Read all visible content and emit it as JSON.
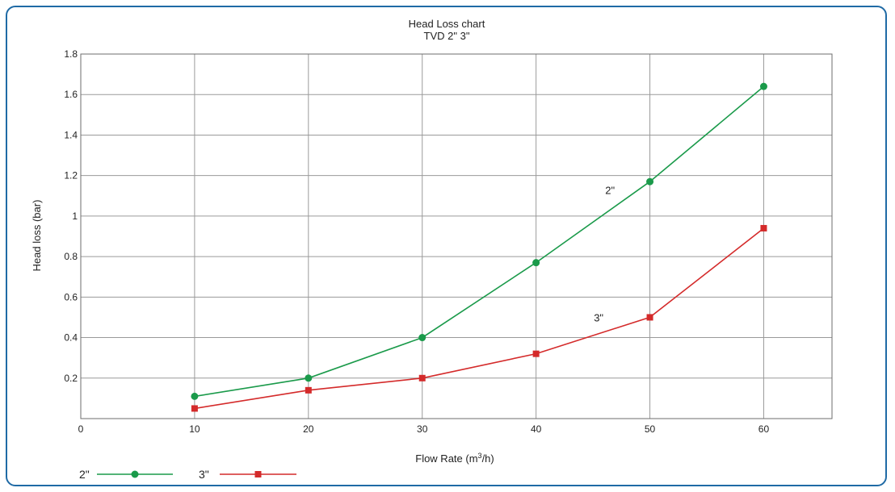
{
  "chart_data": {
    "type": "line",
    "title": "Head Loss chart",
    "subtitle": "TVD 2\" 3\"",
    "xlabel": "Flow Rate (m³/h)",
    "ylabel": "Head loss (bar)",
    "xlim": [
      0,
      66
    ],
    "ylim": [
      0,
      1.8
    ],
    "x_ticks": [
      "0",
      "10",
      "20",
      "30",
      "40",
      "50",
      "60"
    ],
    "y_ticks": [
      "0.2",
      "0.4",
      "0.6",
      "0.8",
      "1",
      "1.2",
      "1.4",
      "1.6",
      "1.8"
    ],
    "grid": true,
    "legend_position": "bottom-left",
    "series": [
      {
        "name": "2\"",
        "color": "#1a9a4a",
        "marker": "circle",
        "x": [
          10,
          20,
          30,
          40,
          50,
          60
        ],
        "values": [
          0.11,
          0.2,
          0.4,
          0.77,
          1.17,
          1.64
        ]
      },
      {
        "name": "3\"",
        "color": "#d42a2a",
        "marker": "square",
        "x": [
          10,
          20,
          30,
          40,
          50,
          60
        ],
        "values": [
          0.05,
          0.14,
          0.2,
          0.32,
          0.5,
          0.94
        ]
      }
    ],
    "annotations": [
      {
        "text": "2\"",
        "x": 46.5,
        "y": 1.11
      },
      {
        "text": "3\"",
        "x": 45.5,
        "y": 0.48
      }
    ]
  }
}
